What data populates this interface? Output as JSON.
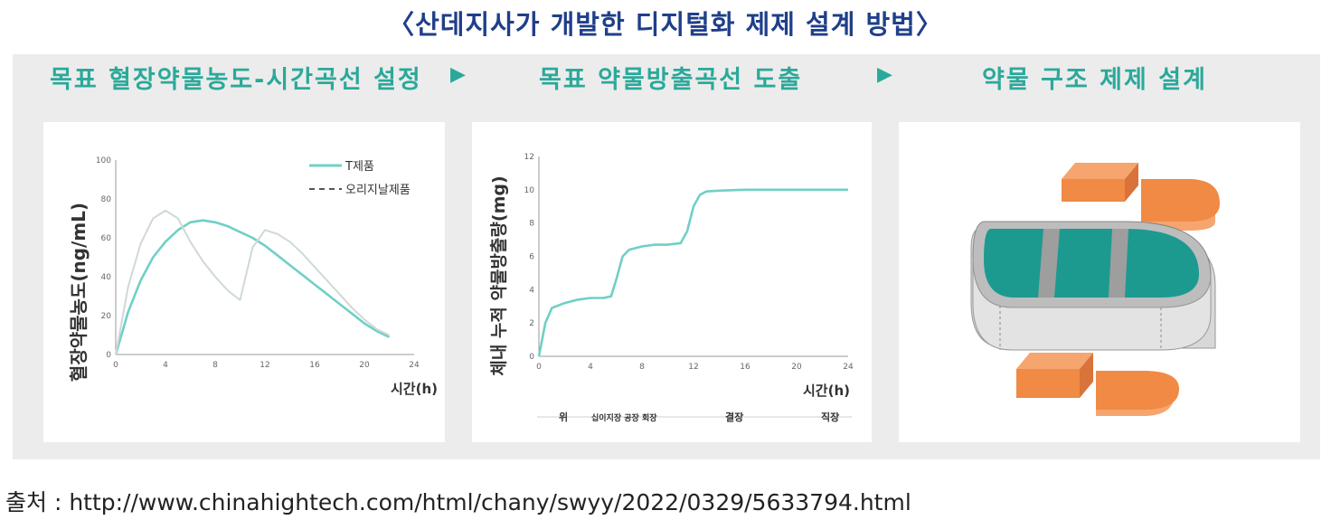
{
  "title": "〈산데지사가 개발한 디지털화 제제 설계 방법〉",
  "stages": [
    {
      "label": "목표 혈장약물농도-시간곡선 설정"
    },
    {
      "label": "목표 약물방출곡선 도출"
    },
    {
      "label": "약물 구조 제제 설계"
    }
  ],
  "arrow_glyph": "▶",
  "source": "출처 :  http://www.chinahightech.com/html/chany/swyy/2022/0329/5633794.html",
  "colors": {
    "teal": "#6fd0c6",
    "title_blue": "#1f3f8a",
    "stage_teal": "#2aa99a",
    "orange": "#f08a44",
    "dark_teal": "#1c9a90"
  },
  "chart_data": [
    {
      "type": "line",
      "ylabel": "혈장약물농도(ng/mL)",
      "xlabel": "시간(h)",
      "xlim": [
        0,
        24
      ],
      "ylim": [
        0,
        100
      ],
      "xticks": [
        0,
        4,
        8,
        12,
        16,
        20,
        24
      ],
      "yticks": [
        0,
        20,
        40,
        60,
        80,
        100
      ],
      "legend_position": "top-right",
      "series": [
        {
          "name": "T제품",
          "color": "#6fd0c6",
          "x": [
            0,
            1,
            2,
            3,
            4,
            5,
            6,
            7,
            8,
            9,
            10,
            11,
            12,
            13,
            14,
            15,
            16,
            17,
            18,
            19,
            20,
            21,
            22
          ],
          "y": [
            0,
            22,
            38,
            50,
            58,
            64,
            68,
            69,
            68,
            66,
            63,
            60,
            56,
            51,
            46,
            41,
            36,
            31,
            26,
            21,
            16,
            12,
            9
          ]
        },
        {
          "name": "오리지날제품",
          "color": "#cfd9d6",
          "x": [
            0,
            1,
            2,
            3,
            4,
            5,
            6,
            7,
            8,
            9,
            10,
            11,
            12,
            13,
            14,
            15,
            16,
            17,
            18,
            19,
            20,
            21,
            22
          ],
          "y": [
            0,
            35,
            57,
            70,
            74,
            70,
            58,
            48,
            40,
            33,
            28,
            55,
            64,
            62,
            58,
            52,
            45,
            38,
            31,
            24,
            18,
            13,
            10
          ]
        }
      ]
    },
    {
      "type": "line",
      "ylabel": "체내 누적 약물방출량(mg)",
      "xlabel": "시간(h)",
      "xlim": [
        0,
        24
      ],
      "ylim": [
        0,
        12
      ],
      "xticks": [
        0,
        4,
        8,
        12,
        16,
        20,
        24
      ],
      "yticks": [
        0,
        2,
        4,
        6,
        8,
        10,
        12
      ],
      "legend_position": "bottom",
      "region_labels": [
        "위",
        "십이지장 공장 회장",
        "결장",
        "직장"
      ],
      "series": [
        {
          "color": "#6fd0c6",
          "x": [
            0,
            0.5,
            1,
            2,
            3,
            4,
            5,
            5.6,
            6,
            6.5,
            7,
            8,
            9,
            10,
            11,
            11.5,
            12,
            12.5,
            13,
            14,
            16,
            20,
            24
          ],
          "y": [
            0,
            2,
            2.9,
            3.2,
            3.4,
            3.5,
            3.5,
            3.6,
            4.6,
            6.0,
            6.4,
            6.6,
            6.7,
            6.7,
            6.8,
            7.5,
            9.0,
            9.7,
            9.9,
            9.95,
            10,
            10,
            10
          ]
        }
      ]
    }
  ]
}
